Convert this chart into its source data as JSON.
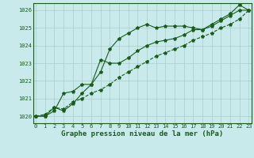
{
  "line1": [
    1020,
    1020,
    1020.5,
    1020.3,
    1020.7,
    1021.3,
    1021.8,
    1022.5,
    1023.8,
    1024.4,
    1024.7,
    1025.0,
    1025.2,
    1025.0,
    1025.1,
    1025.1,
    1025.1,
    1025.0,
    1024.9,
    1025.2,
    1025.5,
    1025.8,
    1026.3,
    1026.0
  ],
  "line2": [
    1020,
    1020,
    1020.3,
    1021.3,
    1021.4,
    1021.8,
    1021.8,
    1023.2,
    1023.0,
    1023.0,
    1023.3,
    1023.7,
    1024.0,
    1024.2,
    1024.3,
    1024.4,
    1024.6,
    1024.9,
    1024.9,
    1025.1,
    1025.4,
    1025.7,
    1026.0,
    1026.0
  ],
  "line3": [
    1020,
    1020.1,
    1020.5,
    1020.4,
    1020.8,
    1021.0,
    1021.3,
    1021.5,
    1021.8,
    1022.2,
    1022.5,
    1022.8,
    1023.1,
    1023.4,
    1023.6,
    1023.8,
    1024.0,
    1024.3,
    1024.5,
    1024.7,
    1025.0,
    1025.2,
    1025.5,
    1026.0
  ],
  "x": [
    0,
    1,
    2,
    3,
    4,
    5,
    6,
    7,
    8,
    9,
    10,
    11,
    12,
    13,
    14,
    15,
    16,
    17,
    18,
    19,
    20,
    21,
    22,
    23
  ],
  "xlim": [
    -0.3,
    23.3
  ],
  "ylim": [
    1019.6,
    1026.4
  ],
  "yticks": [
    1020,
    1021,
    1022,
    1023,
    1024,
    1025,
    1026
  ],
  "xticks": [
    0,
    1,
    2,
    3,
    4,
    5,
    6,
    7,
    8,
    9,
    10,
    11,
    12,
    13,
    14,
    15,
    16,
    17,
    18,
    19,
    20,
    21,
    22,
    23
  ],
  "xlabel": "Graphe pression niveau de la mer (hPa)",
  "line_color": "#1a5c1a",
  "bg_color": "#c8eaea",
  "grid_color": "#aacccc",
  "marker": "*",
  "marker_size": 3,
  "linewidth": 0.8,
  "xlabel_fontsize": 6.5,
  "tick_fontsize": 5.0
}
